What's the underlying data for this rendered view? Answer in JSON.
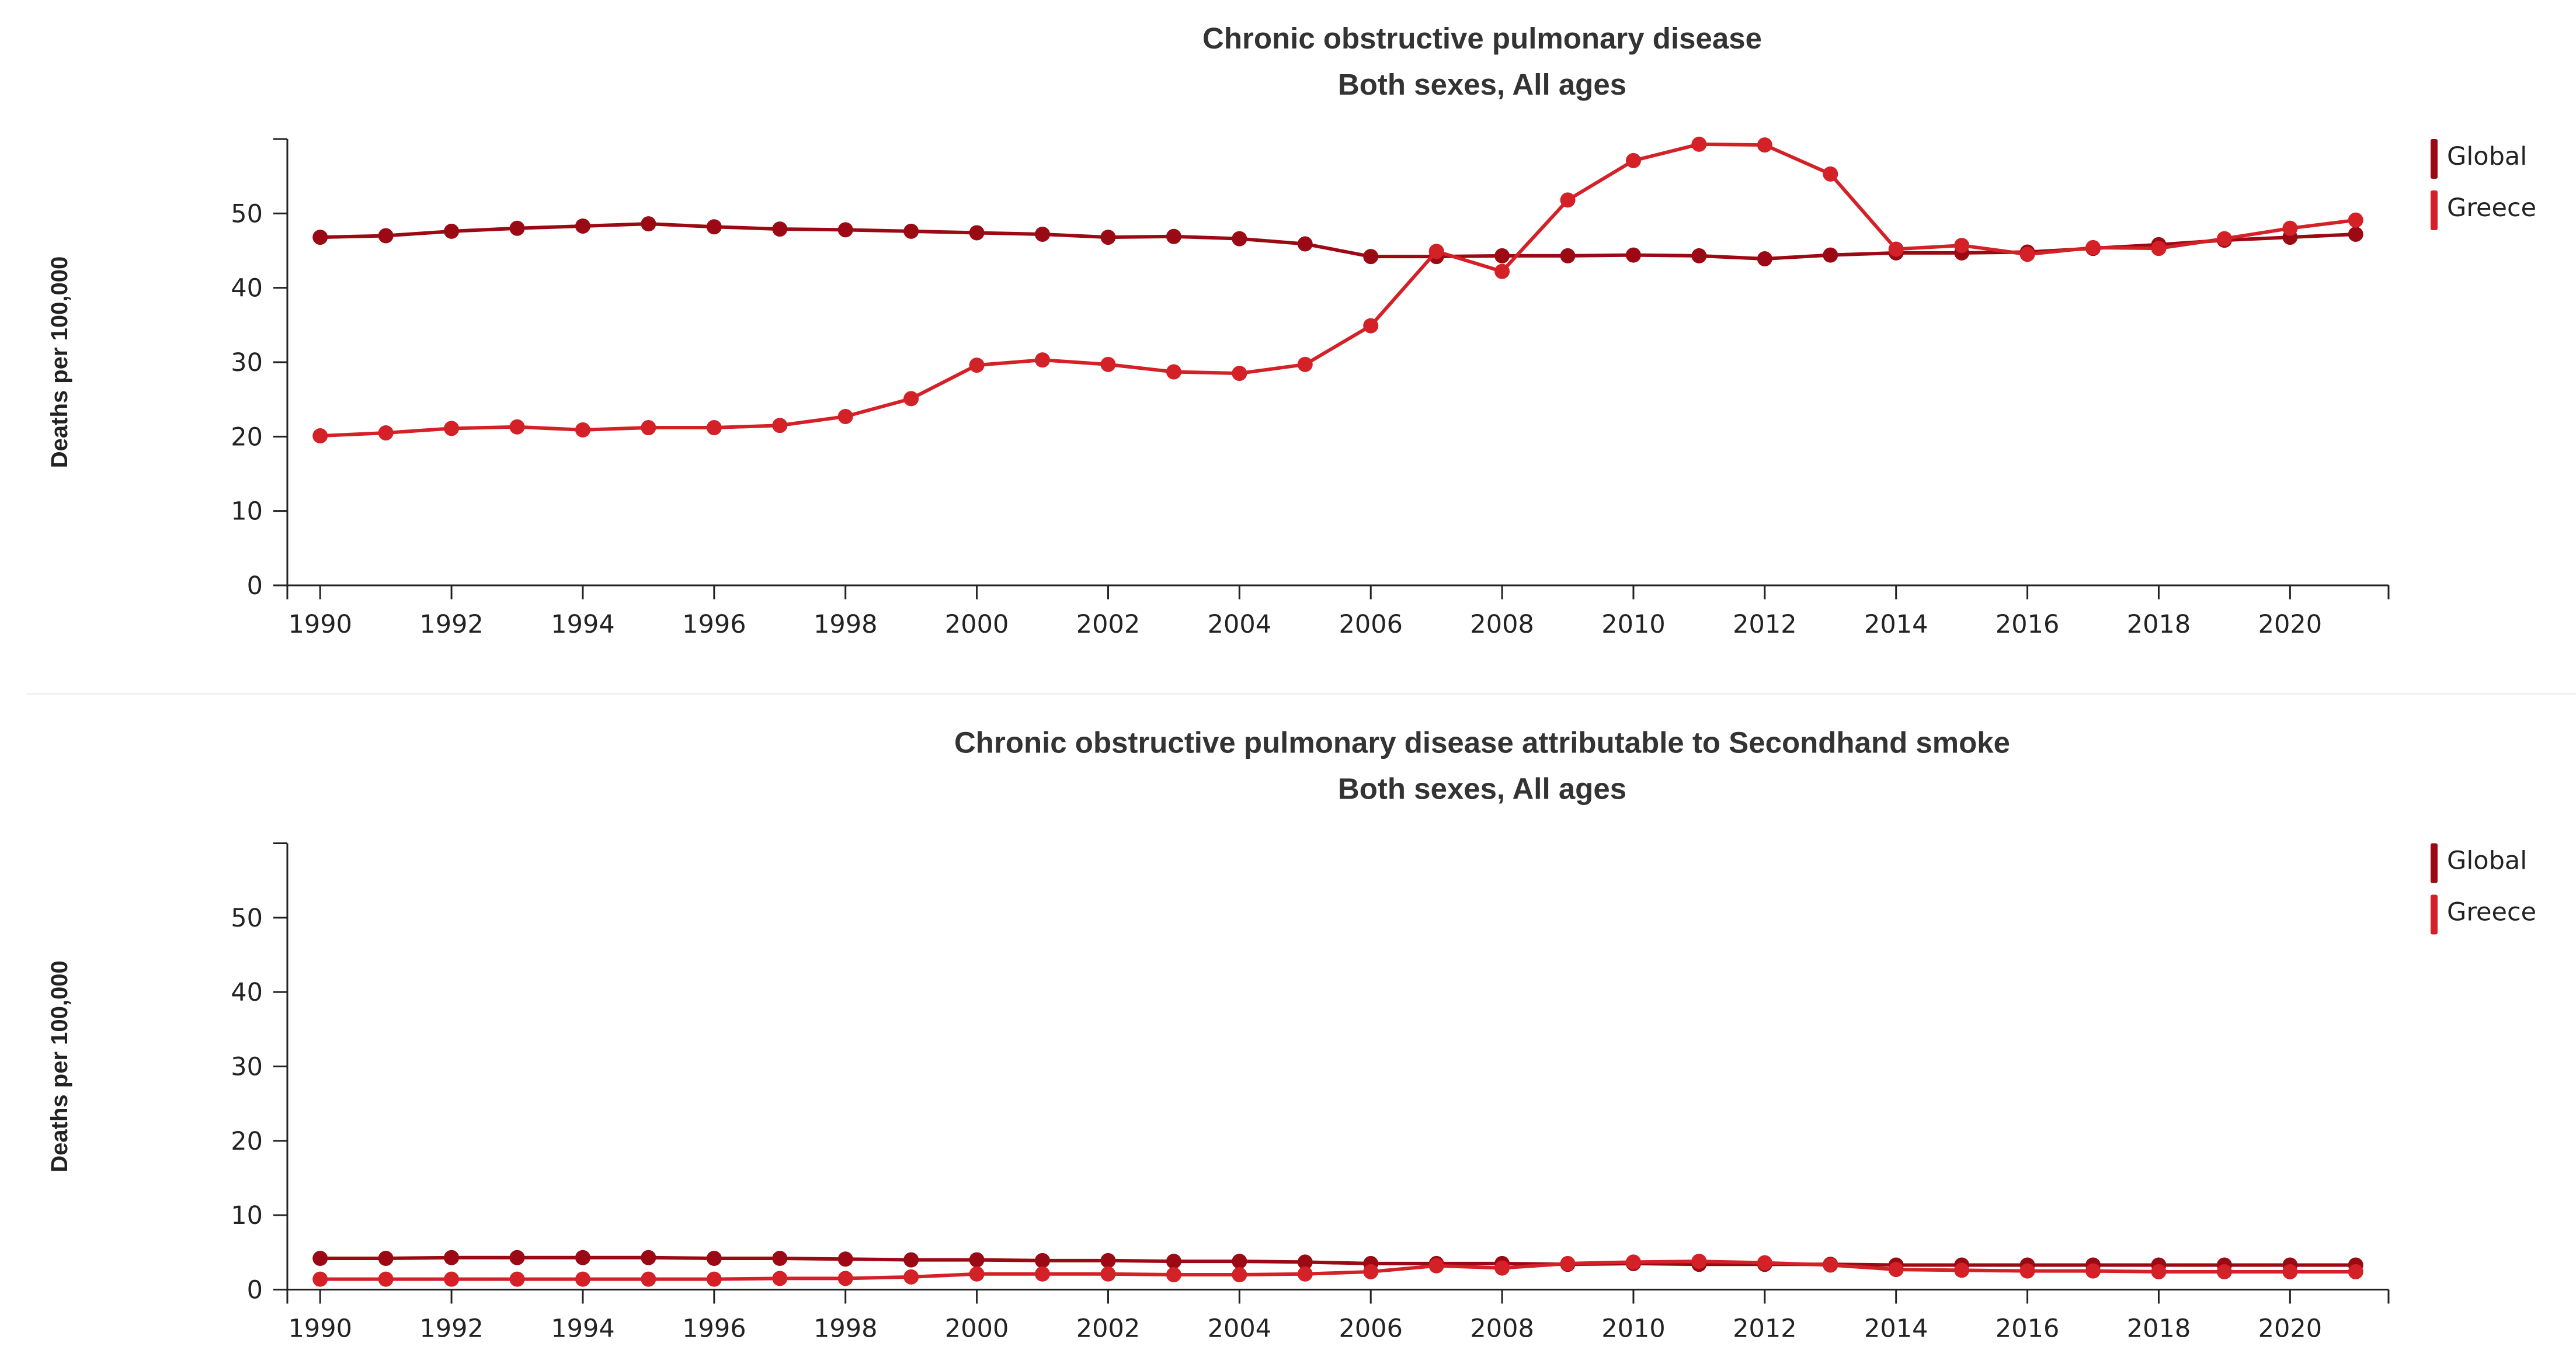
{
  "chart_data": [
    {
      "type": "line",
      "title": "Chronic obstructive pulmonary disease",
      "subtitle": "Both sexes, All ages",
      "ylabel": "Deaths per 100,000",
      "xlabel": "",
      "ylim": [
        0,
        60
      ],
      "yticks": [
        0,
        10,
        20,
        30,
        40,
        50
      ],
      "xlim": [
        1989.5,
        2021.5
      ],
      "xticks": [
        1990,
        1992,
        1994,
        1996,
        1998,
        2000,
        2002,
        2004,
        2006,
        2008,
        2010,
        2012,
        2014,
        2016,
        2018,
        2020
      ],
      "grid": false,
      "legend": "top-right",
      "x": [
        1990,
        1991,
        1992,
        1993,
        1994,
        1995,
        1996,
        1997,
        1998,
        1999,
        2000,
        2001,
        2002,
        2003,
        2004,
        2005,
        2006,
        2007,
        2008,
        2009,
        2010,
        2011,
        2012,
        2013,
        2014,
        2015,
        2016,
        2017,
        2018,
        2019,
        2020,
        2021
      ],
      "series": [
        {
          "name": "Global",
          "color": "#9b0a14",
          "values": [
            46.8,
            47.0,
            47.6,
            48.0,
            48.3,
            48.6,
            48.2,
            47.9,
            47.8,
            47.6,
            47.4,
            47.2,
            46.8,
            46.9,
            46.6,
            45.9,
            44.2,
            44.2,
            44.3,
            44.3,
            44.4,
            44.3,
            43.9,
            44.4,
            44.7,
            44.7,
            44.8,
            45.3,
            45.8,
            46.4,
            46.8,
            47.2
          ]
        },
        {
          "name": "Greece",
          "color": "#d42027",
          "values": [
            20.1,
            20.5,
            21.1,
            21.3,
            20.9,
            21.2,
            21.2,
            21.5,
            22.7,
            25.1,
            29.6,
            30.3,
            29.7,
            28.7,
            28.5,
            29.7,
            34.9,
            44.9,
            42.2,
            51.8,
            57.1,
            59.3,
            59.2,
            55.3,
            45.2,
            45.7,
            44.5,
            45.4,
            45.3,
            46.6,
            48.0,
            49.1
          ]
        }
      ]
    },
    {
      "type": "line",
      "title": "Chronic obstructive pulmonary disease attributable to Secondhand smoke",
      "subtitle": "Both sexes, All ages",
      "ylabel": "Deaths per 100,000",
      "xlabel": "",
      "ylim": [
        0,
        60
      ],
      "yticks": [
        0,
        10,
        20,
        30,
        40,
        50
      ],
      "xlim": [
        1989.5,
        2021.5
      ],
      "xticks": [
        1990,
        1992,
        1994,
        1996,
        1998,
        2000,
        2002,
        2004,
        2006,
        2008,
        2010,
        2012,
        2014,
        2016,
        2018,
        2020
      ],
      "grid": false,
      "legend": "top-right",
      "x": [
        1990,
        1991,
        1992,
        1993,
        1994,
        1995,
        1996,
        1997,
        1998,
        1999,
        2000,
        2001,
        2002,
        2003,
        2004,
        2005,
        2006,
        2007,
        2008,
        2009,
        2010,
        2011,
        2012,
        2013,
        2014,
        2015,
        2016,
        2017,
        2018,
        2019,
        2020,
        2021
      ],
      "series": [
        {
          "name": "Global",
          "color": "#9b0a14",
          "values": [
            4.2,
            4.2,
            4.3,
            4.3,
            4.3,
            4.3,
            4.2,
            4.2,
            4.1,
            4.0,
            4.0,
            3.9,
            3.9,
            3.8,
            3.8,
            3.7,
            3.5,
            3.5,
            3.5,
            3.4,
            3.5,
            3.4,
            3.4,
            3.4,
            3.3,
            3.3,
            3.3,
            3.3,
            3.3,
            3.3,
            3.3,
            3.3
          ]
        },
        {
          "name": "Greece",
          "color": "#d42027",
          "values": [
            1.4,
            1.4,
            1.4,
            1.4,
            1.4,
            1.4,
            1.4,
            1.5,
            1.5,
            1.7,
            2.1,
            2.1,
            2.1,
            2.0,
            2.0,
            2.1,
            2.4,
            3.2,
            2.9,
            3.5,
            3.7,
            3.8,
            3.6,
            3.3,
            2.7,
            2.6,
            2.5,
            2.5,
            2.4,
            2.4,
            2.4,
            2.4
          ]
        }
      ]
    }
  ]
}
